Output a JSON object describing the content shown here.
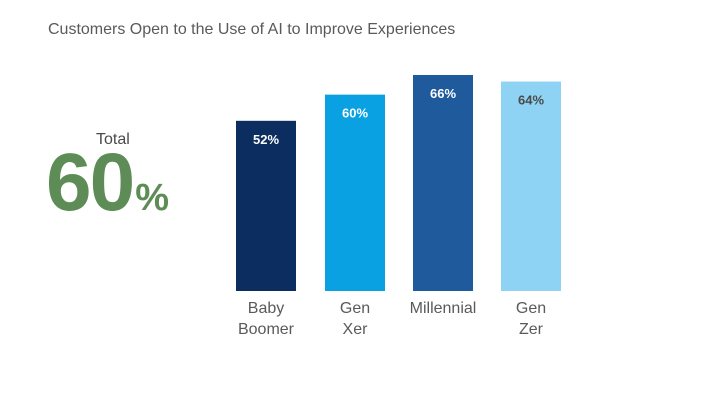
{
  "chart_data": {
    "type": "bar",
    "title": "Customers Open to the Use of AI to Improve Experiences",
    "categories": [
      [
        "Baby",
        "Boomer"
      ],
      [
        "Gen",
        "Xer"
      ],
      [
        "Millennial"
      ],
      [
        "Gen",
        "Zer"
      ]
    ],
    "values": [
      52,
      60,
      66,
      64
    ],
    "value_labels": [
      "52%",
      "60%",
      "66%",
      "64%"
    ],
    "colors": [
      "#0b2d5f",
      "#0aa1e2",
      "#1f5a9c",
      "#8fd3f4"
    ],
    "label_colors": [
      "#ffffff",
      "#ffffff",
      "#ffffff",
      "#4a4a4a"
    ],
    "grid": false,
    "legend": "none"
  },
  "summary": {
    "label": "Total",
    "value": "60",
    "unit": "%",
    "color": "#5e8c56"
  }
}
